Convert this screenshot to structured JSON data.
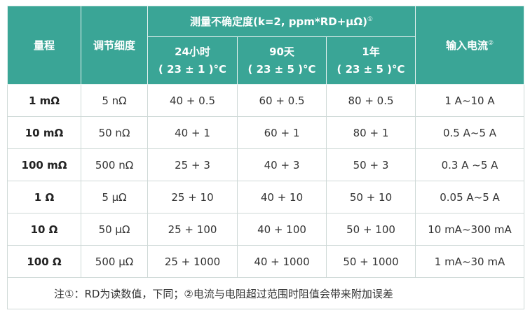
{
  "header": {
    "range": "量程",
    "resolution": "调节细度",
    "uncertainty": "测量不确定度(k=2, ppm*RD+μΩ)",
    "uncertainty_note": "①",
    "current": "输入电流",
    "current_note": "②",
    "periods": [
      {
        "name": "24小时",
        "temp": "( 23 ± 1 )°C"
      },
      {
        "name": "90天",
        "temp": "( 23 ± 5 )°C"
      },
      {
        "name": "1年",
        "temp": "( 23 ± 5 )°C"
      }
    ]
  },
  "table": {
    "rows": [
      [
        "1 mΩ",
        "5 nΩ",
        "40 + 0.5",
        "60 + 0.5",
        "80 + 0.5",
        "1 A~10 A"
      ],
      [
        "10 mΩ",
        "50 nΩ",
        "40 + 1",
        "60 + 1",
        "80 + 1",
        "0.5 A~5 A"
      ],
      [
        "100 mΩ",
        "500 nΩ",
        "25 + 3",
        "40 + 3",
        "50 + 3",
        "0.3 A ~5 A"
      ],
      [
        "1 Ω",
        "5 μΩ",
        "25 + 10",
        "40 + 10",
        "50 + 10",
        "0.05 A~5 A"
      ],
      [
        "10 Ω",
        "50 μΩ",
        "25 + 100",
        "40 + 100",
        "50 + 100",
        "10 mA~300 mA"
      ],
      [
        "100 Ω",
        "500 μΩ",
        "25 + 1000",
        "40 + 1000",
        "50 + 1000",
        "1 mA~30 mA"
      ]
    ]
  },
  "footnote": "注①：RD为读数值，下同；②电流与电阻超过范围时阻值会带来附加误差"
}
